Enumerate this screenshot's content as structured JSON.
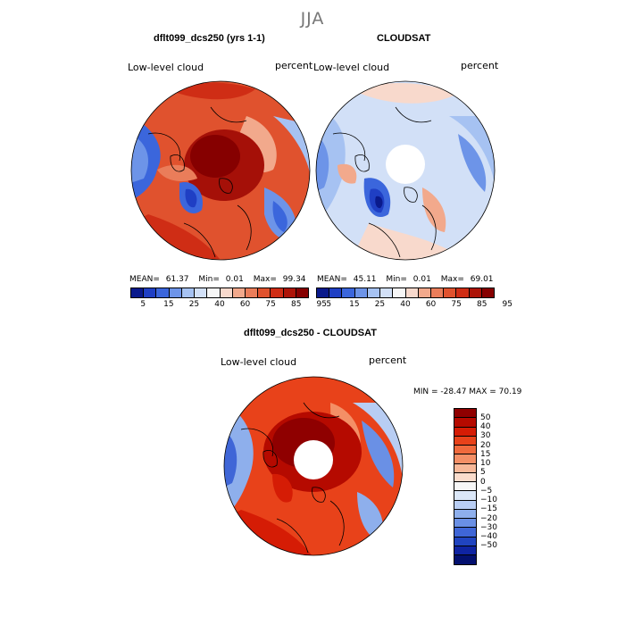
{
  "season": "JJA",
  "model_panel": {
    "title": "dflt099_dcs250 (yrs 1-1)",
    "variable": "Low-level cloud",
    "units": "percent",
    "stats": {
      "mean_label": "MEAN=",
      "mean": "61.37",
      "min_label": "Min=",
      "min": "0.01",
      "max_label": "Max=",
      "max": "99.34"
    }
  },
  "obs_panel": {
    "title": "CLOUDSAT",
    "variable": "Low-level cloud",
    "units": "percent",
    "stats": {
      "mean_label": "MEAN=",
      "mean": "45.11",
      "min_label": "Min=",
      "min": "0.01",
      "max_label": "Max=",
      "max": "69.01"
    }
  },
  "diff_panel": {
    "title": "dflt099_dcs250 - CLOUDSAT",
    "variable": "Low-level cloud",
    "units": "percent",
    "minmax": "MIN = -28.47 MAX =  70.19"
  },
  "abs_colorbar": {
    "labels": [
      "5",
      "15",
      "25",
      "40",
      "60",
      "75",
      "85",
      "95"
    ],
    "colors": [
      "#0a1a8c",
      "#1f3fc4",
      "#3b66dc",
      "#6d94e8",
      "#a6c2f2",
      "#d2e0f7",
      "#f6f6f6",
      "#f8d9cc",
      "#f2a98c",
      "#ea7d5a",
      "#e0522e",
      "#cf2d15",
      "#ad1408",
      "#860000"
    ]
  },
  "diff_colorbar": {
    "labels": [
      "50",
      "40",
      "30",
      "20",
      "15",
      "10",
      "5",
      "0",
      "−5",
      "−10",
      "−15",
      "−20",
      "−30",
      "−40",
      "−50"
    ],
    "colors": [
      "#8f0000",
      "#b50a00",
      "#d51c05",
      "#e8421a",
      "#f06a3d",
      "#f48f66",
      "#f7b899",
      "#fadccc",
      "#f7f7f7",
      "#dbe7f8",
      "#b8cdf3",
      "#8eafec",
      "#6a90e5",
      "#3f66d7",
      "#2044c0",
      "#0f24a2",
      "#03106f"
    ]
  },
  "map_colors": {
    "land_red": "#c8230f",
    "deep_red": "#8b0000",
    "mid_red": "#e0522e",
    "light_red": "#f2a98c",
    "white": "#f6f6f6",
    "light_blue": "#a6c2f2",
    "mid_blue": "#3b66dc",
    "dark_blue": "#0a1a8c"
  }
}
